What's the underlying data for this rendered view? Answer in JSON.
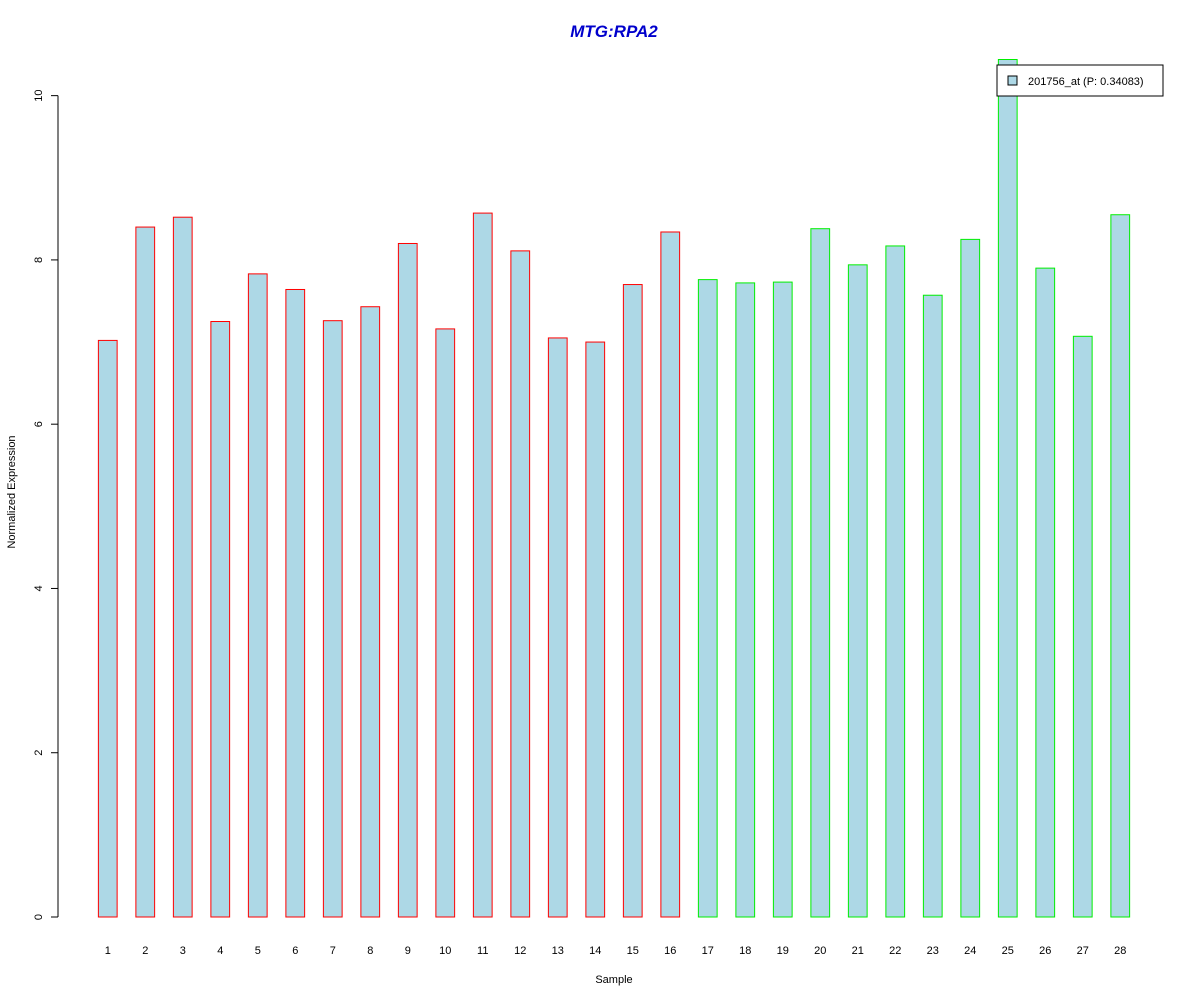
{
  "chart_data": {
    "type": "bar",
    "title": "MTG:RPA2",
    "xlabel": "Sample",
    "ylabel": "Normalized Expression",
    "categories": [
      "1",
      "2",
      "3",
      "4",
      "5",
      "6",
      "7",
      "8",
      "9",
      "10",
      "11",
      "12",
      "13",
      "14",
      "15",
      "16",
      "17",
      "18",
      "19",
      "20",
      "21",
      "22",
      "23",
      "24",
      "25",
      "26",
      "27",
      "28"
    ],
    "values": [
      7.02,
      8.4,
      8.52,
      7.25,
      7.83,
      7.64,
      7.26,
      7.43,
      8.2,
      7.16,
      8.57,
      8.11,
      7.05,
      7.0,
      7.7,
      8.34,
      7.76,
      7.72,
      7.73,
      8.38,
      7.94,
      8.17,
      7.57,
      8.25,
      10.44,
      7.9,
      7.07,
      8.55
    ],
    "groups": [
      1,
      1,
      1,
      1,
      1,
      1,
      1,
      1,
      1,
      1,
      1,
      1,
      1,
      1,
      1,
      1,
      2,
      2,
      2,
      2,
      2,
      2,
      2,
      2,
      2,
      2,
      2,
      2
    ],
    "group_border_colors": {
      "1": "#ff0000",
      "2": "#00ee00"
    },
    "bar_fill": "#add8e6",
    "title_color": "#0000cc",
    "yticks": [
      0,
      2,
      4,
      6,
      8,
      10
    ],
    "ylim": [
      0,
      10.44
    ],
    "grid": false,
    "legend": {
      "position": "top-right",
      "label": "201756_at (P: 0.34083)"
    }
  }
}
